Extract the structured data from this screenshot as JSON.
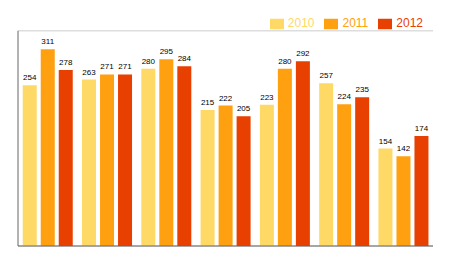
{
  "chart_data": {
    "type": "bar",
    "categories": [
      null,
      null,
      null,
      null,
      null,
      null,
      null
    ],
    "series": [
      {
        "name": "2010",
        "color": "#FFD966",
        "values": [
          254,
          263,
          280,
          215,
          223,
          257,
          154
        ]
      },
      {
        "name": "2011",
        "color": "#FFA010",
        "values": [
          311,
          271,
          295,
          222,
          280,
          224,
          142
        ]
      },
      {
        "name": "2012",
        "color": "#E84000",
        "values": [
          278,
          271,
          284,
          205,
          292,
          235,
          174
        ]
      }
    ],
    "ylim": [
      0,
      340
    ],
    "yticks": [
      0,
      50,
      100,
      150,
      200,
      250,
      300
    ],
    "grid": true,
    "legend": "upper right",
    "data_labels": true,
    "tick_labels": false
  }
}
